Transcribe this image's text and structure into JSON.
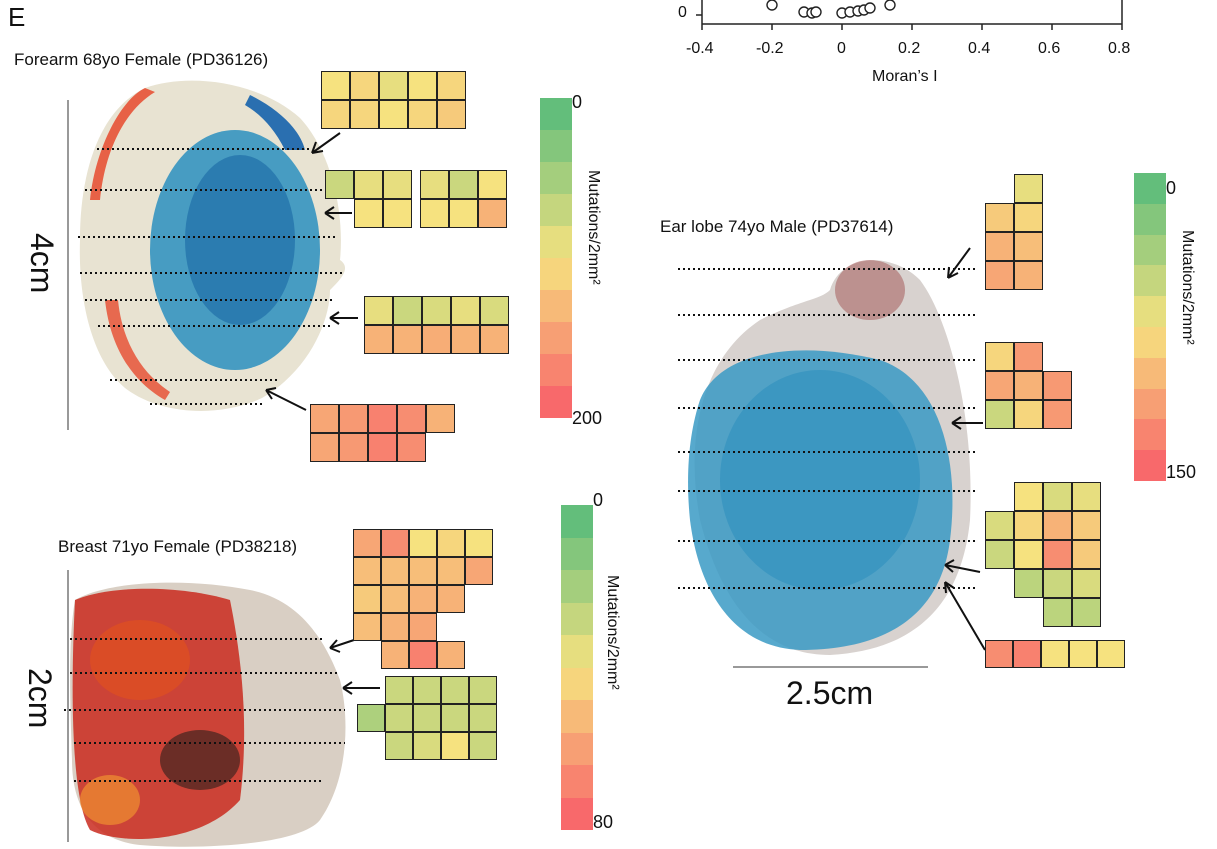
{
  "figure": {
    "panel_letter": "E",
    "top_axis": {
      "x_ticks": [
        "-0.4",
        "-0.2",
        "0",
        "0.2",
        "0.4",
        "0.6",
        "0.8"
      ],
      "y_tick_visible": "0",
      "xlabel": "Moran’s I"
    },
    "samples": [
      {
        "title": "Forearm 68yo Female (PD36126)",
        "scale": "4cm",
        "colorbar": {
          "min": "0",
          "max": "200",
          "title": "Mutations/2mm²"
        }
      },
      {
        "title": "Ear lobe 74yo Male (PD37614)",
        "scale": "2.5cm",
        "colorbar": {
          "min": "0",
          "max": "150",
          "title": "Mutations/2mm²"
        }
      },
      {
        "title": "Breast 71yo Female (PD38218)",
        "scale": "2cm",
        "colorbar": {
          "min": "0",
          "max": "80",
          "title": "Mutations/2mm²"
        }
      }
    ],
    "colors": {
      "tissue_blue": "#2a8fc0",
      "edge_red": "#e64a2e",
      "scale_green": "#63be7b",
      "scale_yellow": "#f6e27f",
      "scale_red": "#f8696b"
    }
  }
}
